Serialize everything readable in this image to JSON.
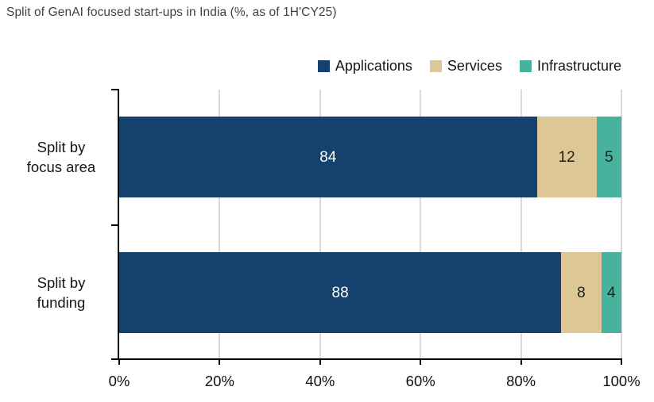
{
  "title": "Split of GenAI focused start-ups in India (%, as of 1H'CY25)",
  "colors": {
    "applications": "#14416D",
    "services": "#DCC795",
    "infrastructure": "#47B29D",
    "gridline": "#D9D9D9",
    "axis": "#000000"
  },
  "legend": [
    {
      "label": "Applications",
      "color": "#14416D"
    },
    {
      "label": "Services",
      "color": "#DCC795"
    },
    {
      "label": "Infrastructure",
      "color": "#47B29D"
    }
  ],
  "chart_data": {
    "type": "bar",
    "orientation": "horizontal",
    "stacked": true,
    "title": "Split of GenAI focused start-ups in India (%, as of 1H'CY25)",
    "categories": [
      {
        "label": "Split by focus area",
        "lines": [
          "Split by",
          "focus area"
        ]
      },
      {
        "label": "Split by funding",
        "lines": [
          "Split by",
          "funding"
        ]
      }
    ],
    "series": [
      {
        "name": "Applications",
        "color": "#14416D",
        "label_color": "#FFFFFF",
        "values": [
          84,
          88
        ]
      },
      {
        "name": "Services",
        "color": "#DCC795",
        "label_color": "#1F1F1F",
        "values": [
          12,
          8
        ]
      },
      {
        "name": "Infrastructure",
        "color": "#47B29D",
        "label_color": "#1F1F1F",
        "values": [
          5,
          4
        ]
      }
    ],
    "x_ticks": [
      {
        "label": "0%",
        "value": 0
      },
      {
        "label": "20%",
        "value": 20
      },
      {
        "label": "40%",
        "value": 40
      },
      {
        "label": "60%",
        "value": 60
      },
      {
        "label": "80%",
        "value": 80
      },
      {
        "label": "100%",
        "value": 100
      }
    ],
    "xlim": [
      0,
      100
    ],
    "grid": true,
    "legend_position": "top-right"
  }
}
